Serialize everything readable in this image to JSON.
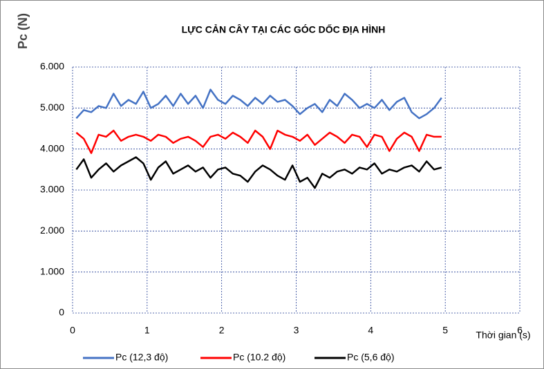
{
  "chart_data": {
    "type": "line",
    "title": "LỰC CẢN CÂY TẠI CÁC GÓC DỐC ĐỊA HÌNH",
    "y_label": "Pc (N)",
    "x_label": "Thời gian (s)",
    "x": [
      0.05,
      0.15,
      0.25,
      0.35,
      0.45,
      0.55,
      0.65,
      0.75,
      0.85,
      0.95,
      1.05,
      1.15,
      1.25,
      1.35,
      1.45,
      1.55,
      1.65,
      1.75,
      1.85,
      1.95,
      2.05,
      2.15,
      2.25,
      2.35,
      2.45,
      2.55,
      2.65,
      2.75,
      2.85,
      2.95,
      3.05,
      3.15,
      3.25,
      3.35,
      3.45,
      3.55,
      3.65,
      3.75,
      3.85,
      3.95,
      4.05,
      4.15,
      4.25,
      4.35,
      4.45,
      4.55,
      4.65,
      4.75,
      4.85,
      4.95
    ],
    "series": [
      {
        "name": "Pc (12,3 độ)",
        "color": "#4472c4",
        "values": [
          4750,
          4950,
          4900,
          5050,
          5000,
          5350,
          5050,
          5200,
          5100,
          5400,
          5000,
          5100,
          5300,
          5050,
          5350,
          5100,
          5300,
          5000,
          5450,
          5200,
          5100,
          5300,
          5200,
          5050,
          5250,
          5100,
          5300,
          5150,
          5200,
          5050,
          4850,
          5000,
          5100,
          4900,
          5200,
          5050,
          5350,
          5200,
          5000,
          5100,
          5000,
          5200,
          4950,
          5150,
          5250,
          4900,
          4750,
          4850,
          5000,
          5250
        ]
      },
      {
        "name": "Pc (10.2 độ)",
        "color": "#ff0000",
        "values": [
          4400,
          4250,
          3900,
          4350,
          4300,
          4450,
          4200,
          4300,
          4350,
          4300,
          4200,
          4350,
          4300,
          4150,
          4250,
          4300,
          4200,
          4050,
          4300,
          4350,
          4250,
          4400,
          4300,
          4150,
          4450,
          4300,
          4000,
          4450,
          4350,
          4300,
          4200,
          4350,
          4100,
          4250,
          4400,
          4300,
          4150,
          4350,
          4300,
          4050,
          4350,
          4300,
          3950,
          4250,
          4400,
          4300,
          3950,
          4350,
          4300,
          4300
        ]
      },
      {
        "name": "Pc (5,6 độ)",
        "color": "#000000",
        "values": [
          3500,
          3750,
          3300,
          3500,
          3650,
          3450,
          3600,
          3700,
          3800,
          3650,
          3250,
          3550,
          3700,
          3400,
          3500,
          3600,
          3450,
          3550,
          3300,
          3500,
          3550,
          3400,
          3350,
          3200,
          3450,
          3600,
          3500,
          3350,
          3250,
          3600,
          3200,
          3300,
          3050,
          3400,
          3300,
          3450,
          3500,
          3400,
          3550,
          3500,
          3650,
          3400,
          3500,
          3450,
          3550,
          3600,
          3450,
          3700,
          3500,
          3550
        ]
      }
    ],
    "xlim": [
      0,
      6
    ],
    "xticks": [
      0,
      1,
      2,
      3,
      4,
      5,
      6
    ],
    "ylim": [
      0,
      6000
    ],
    "yticks": [
      0,
      {
        "value": 1000,
        "label": "1.000"
      },
      {
        "value": 2000,
        "label": "2.000"
      },
      {
        "value": 3000,
        "label": "3.000"
      },
      {
        "value": 4000,
        "label": "4.000"
      },
      {
        "value": 5000,
        "label": "5.000"
      },
      {
        "value": 6000,
        "label": "6.000"
      }
    ],
    "grid": true,
    "legend": "bottom"
  }
}
